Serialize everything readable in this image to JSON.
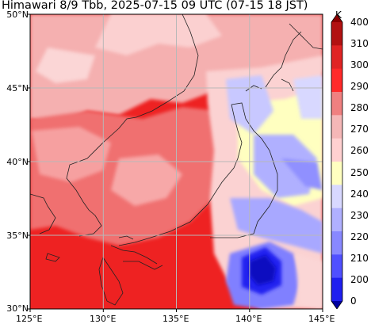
{
  "title": "Himawari 8/9 Tbb, 2025-07-15 09 UTC (07-15 18 JST)",
  "colorbar": {
    "unit": "K",
    "ticks": [
      "400",
      "310",
      "300",
      "290",
      "280",
      "270",
      "260",
      "250",
      "240",
      "230",
      "220",
      "210",
      "200",
      "0"
    ],
    "colors": [
      "#8b0000",
      "#b21212",
      "#e02424",
      "#ff2a2a",
      "#f08080",
      "#f5b7b7",
      "#ffd0d0",
      "#ffffc0",
      "#d8d8ff",
      "#b0b0ff",
      "#8888ff",
      "#5050ff",
      "#2020f0",
      "#0000a0"
    ]
  },
  "axes": {
    "lat_labels": [
      "50°N",
      "45°N",
      "40°N",
      "35°N",
      "30°N"
    ],
    "lon_labels": [
      "125°E",
      "130°E",
      "135°E",
      "140°E",
      "145°E"
    ]
  },
  "colors": {
    "warm_base": "#ee2222",
    "warm_mid": "#f37070",
    "pink": "#f7b0b0",
    "pale": "#fbd6d6",
    "cream": "#ffffc0",
    "lavender": "#c8c8ff",
    "blue": "#7070ff",
    "deep_blue": "#1818e0"
  }
}
